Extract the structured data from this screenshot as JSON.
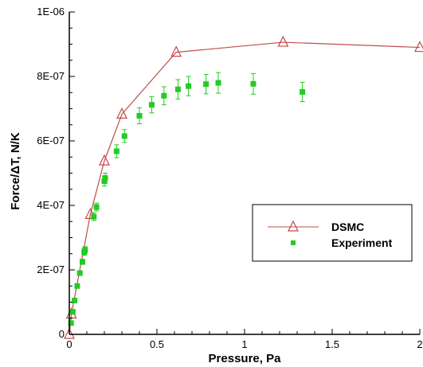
{
  "colors": {
    "dsmc": "#c24b4b",
    "experiment": "#22cc22",
    "axis": "#000000"
  },
  "chart_data": {
    "type": "scatter",
    "title": "",
    "xlabel": "Pressure, Pa",
    "ylabel": "Force/ΔT, N/K",
    "xlim": [
      0,
      2
    ],
    "ylim": [
      0,
      1e-06
    ],
    "x_ticks": [
      {
        "value": 0,
        "label": "0"
      },
      {
        "value": 0.5,
        "label": "0.5"
      },
      {
        "value": 1,
        "label": "1"
      },
      {
        "value": 1.5,
        "label": "1.5"
      },
      {
        "value": 2,
        "label": "2"
      }
    ],
    "y_ticks": [
      {
        "value": 0,
        "label": "0"
      },
      {
        "value": 2e-07,
        "label": "2E-07"
      },
      {
        "value": 4e-07,
        "label": "4E-07"
      },
      {
        "value": 6e-07,
        "label": "6E-07"
      },
      {
        "value": 8e-07,
        "label": "8E-07"
      },
      {
        "value": 1e-06,
        "label": "1E-06"
      }
    ],
    "grid": false,
    "legend_position": "lower-right",
    "series": [
      {
        "name": "DSMC",
        "style": "line-with-open-triangle-markers",
        "color": "#c24b4b",
        "points": [
          {
            "x": 0.0,
            "y": 0.0
          },
          {
            "x": 0.012,
            "y": 6.3e-08
          },
          {
            "x": 0.12,
            "y": 3.72e-07
          },
          {
            "x": 0.2,
            "y": 5.38e-07
          },
          {
            "x": 0.3,
            "y": 6.83e-07
          },
          {
            "x": 0.61,
            "y": 8.75e-07
          },
          {
            "x": 1.22,
            "y": 9.06e-07
          },
          {
            "x": 2.0,
            "y": 8.9e-07
          }
        ]
      },
      {
        "name": "Experiment",
        "style": "filled-square-markers-with-error-bars",
        "color": "#22cc22",
        "points": [
          {
            "x": 0.01,
            "y": 3.5e-08,
            "err": 0
          },
          {
            "x": 0.02,
            "y": 7e-08,
            "err": 0
          },
          {
            "x": 0.03,
            "y": 1.05e-07,
            "err": 0
          },
          {
            "x": 0.045,
            "y": 1.5e-07,
            "err": 5e-09
          },
          {
            "x": 0.06,
            "y": 1.9e-07,
            "err": 5e-09
          },
          {
            "x": 0.075,
            "y": 2.25e-07,
            "err": 8e-09
          },
          {
            "x": 0.085,
            "y": 2.55e-07,
            "err": 1e-08
          },
          {
            "x": 0.09,
            "y": 2.62e-07,
            "err": 1e-08
          },
          {
            "x": 0.14,
            "y": 3.65e-07,
            "err": 1.2e-08
          },
          {
            "x": 0.155,
            "y": 3.95e-07,
            "err": 1.2e-08
          },
          {
            "x": 0.2,
            "y": 4.75e-07,
            "err": 1.5e-08
          },
          {
            "x": 0.205,
            "y": 4.85e-07,
            "err": 1.5e-08
          },
          {
            "x": 0.27,
            "y": 5.68e-07,
            "err": 2e-08
          },
          {
            "x": 0.315,
            "y": 6.15e-07,
            "err": 2e-08
          },
          {
            "x": 0.4,
            "y": 6.78e-07,
            "err": 2.5e-08
          },
          {
            "x": 0.47,
            "y": 7.12e-07,
            "err": 2.5e-08
          },
          {
            "x": 0.54,
            "y": 7.4e-07,
            "err": 2.8e-08
          },
          {
            "x": 0.62,
            "y": 7.6e-07,
            "err": 3e-08
          },
          {
            "x": 0.68,
            "y": 7.7e-07,
            "err": 3e-08
          },
          {
            "x": 0.78,
            "y": 7.76e-07,
            "err": 3e-08
          },
          {
            "x": 0.85,
            "y": 7.8e-07,
            "err": 3.2e-08
          },
          {
            "x": 1.05,
            "y": 7.77e-07,
            "err": 3.2e-08
          },
          {
            "x": 1.33,
            "y": 7.52e-07,
            "err": 3e-08
          }
        ]
      }
    ]
  }
}
